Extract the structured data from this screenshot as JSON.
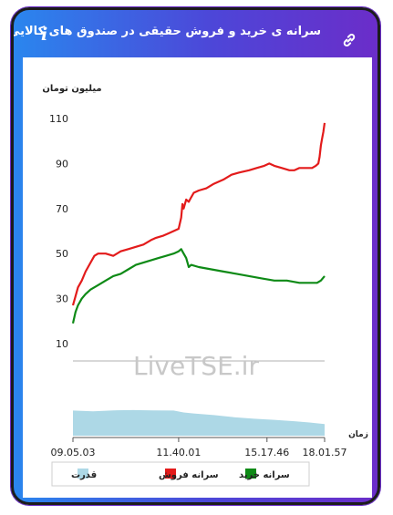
{
  "header": {
    "title": "سرانه ی خرید و فروش حقیقی در صندوق های کالایی",
    "info_glyph": "i",
    "info_icon": "info-icon",
    "link_icon": "link-icon"
  },
  "watermark": "LiveTSE.ir",
  "chart_data": {
    "type": "line",
    "ylabel": "میلیون تومان",
    "xlabel": "زمان",
    "ylim": [
      0,
      110
    ],
    "y_ticks": [
      10,
      30,
      50,
      70,
      90,
      110
    ],
    "x_ticks": [
      "09.05.03",
      "11.40.01",
      "15.17.46",
      "18.01.57"
    ],
    "x_tick_positions": [
      0,
      0.42,
      0.771,
      1
    ],
    "x_range": [
      0,
      1
    ],
    "grid": false,
    "legend_position": "bottom",
    "series": [
      {
        "name": "سرانه فروش",
        "color": "#e31b1b",
        "x": [
          0,
          0.01,
          0.02,
          0.035,
          0.05,
          0.07,
          0.085,
          0.1,
          0.13,
          0.16,
          0.19,
          0.22,
          0.25,
          0.28,
          0.31,
          0.33,
          0.36,
          0.38,
          0.4,
          0.42,
          0.43,
          0.435,
          0.44,
          0.45,
          0.46,
          0.47,
          0.48,
          0.5,
          0.53,
          0.56,
          0.6,
          0.63,
          0.66,
          0.7,
          0.73,
          0.76,
          0.78,
          0.8,
          0.83,
          0.86,
          0.88,
          0.9,
          0.92,
          0.95,
          0.965,
          0.975,
          0.98,
          0.985,
          0.99,
          0.995,
          1.0
        ],
        "values": [
          27,
          31,
          35,
          38,
          42,
          46,
          49,
          50,
          50,
          49,
          51,
          52,
          53,
          54,
          56,
          57,
          58,
          59,
          60,
          61,
          66,
          72,
          70,
          74,
          73,
          75,
          77,
          78,
          79,
          81,
          83,
          85,
          86,
          87,
          88,
          89,
          90,
          89,
          88,
          87,
          87,
          88,
          88,
          88,
          89,
          90,
          93,
          98,
          101,
          104,
          108
        ]
      },
      {
        "name": "سرانه خرید",
        "color": "#0e8a16",
        "x": [
          0,
          0.01,
          0.02,
          0.035,
          0.05,
          0.07,
          0.1,
          0.13,
          0.16,
          0.19,
          0.22,
          0.25,
          0.28,
          0.31,
          0.34,
          0.37,
          0.4,
          0.42,
          0.43,
          0.44,
          0.45,
          0.46,
          0.47,
          0.5,
          0.55,
          0.6,
          0.65,
          0.7,
          0.75,
          0.8,
          0.85,
          0.9,
          0.95,
          0.97,
          0.985,
          1.0
        ],
        "values": [
          19,
          24,
          27,
          30,
          32,
          34,
          36,
          38,
          40,
          41,
          43,
          45,
          46,
          47,
          48,
          49,
          50,
          51,
          52,
          50,
          48,
          44,
          45,
          44,
          43,
          42,
          41,
          40,
          39,
          38,
          38,
          37,
          37,
          37,
          38,
          40
        ]
      }
    ],
    "volume": {
      "name": "قدرت",
      "color": "#add8e6",
      "x": [
        0,
        0.08,
        0.16,
        0.24,
        0.32,
        0.4,
        0.44,
        0.48,
        0.56,
        0.64,
        0.72,
        0.8,
        0.88,
        0.94,
        1.0
      ],
      "values": [
        0.95,
        0.92,
        0.96,
        0.97,
        0.96,
        0.95,
        0.88,
        0.84,
        0.78,
        0.7,
        0.64,
        0.6,
        0.55,
        0.5,
        0.44
      ]
    }
  }
}
